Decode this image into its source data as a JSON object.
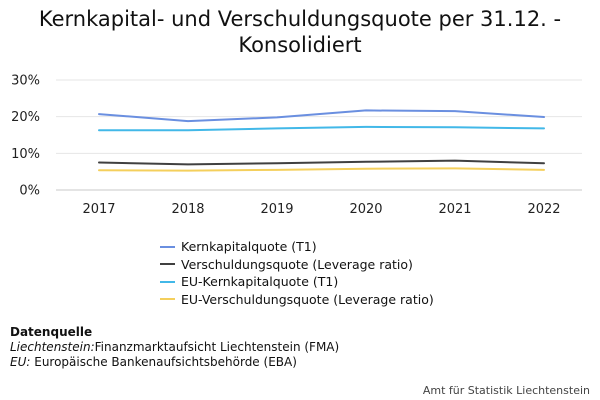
{
  "title_line1": "Kernkapital- und Verschuldungsquote per 31.12. -",
  "title_line2": "Konsolidiert",
  "chart_data": {
    "type": "line",
    "title": "Kernkapital- und Verschuldungsquote per 31.12. - Konsolidiert",
    "categories": [
      "2017",
      "2018",
      "2019",
      "2020",
      "2021",
      "2022"
    ],
    "ylim": [
      0,
      30
    ],
    "yticks": [
      "0%",
      "10%",
      "20%",
      "30%"
    ],
    "ytick_values": [
      0,
      10,
      20,
      30
    ],
    "grid": true,
    "legend_position": "bottom",
    "series": [
      {
        "name": "Kernkapitalquote (T1)",
        "color": "#6a8fe0",
        "values": [
          20.7,
          18.8,
          19.8,
          21.7,
          21.5,
          19.9
        ]
      },
      {
        "name": "Verschuldungsquote (Leverage ratio)",
        "color": "#404040",
        "values": [
          7.5,
          7.0,
          7.3,
          7.7,
          8.0,
          7.3
        ]
      },
      {
        "name": "EU-Kernkapitalquote (T1)",
        "color": "#42b8e8",
        "values": [
          16.3,
          16.3,
          16.8,
          17.2,
          17.1,
          16.8
        ]
      },
      {
        "name": "EU-Verschuldungsquote (Leverage ratio)",
        "color": "#f4cf5c",
        "values": [
          5.4,
          5.3,
          5.5,
          5.8,
          5.9,
          5.5
        ]
      }
    ]
  },
  "source": {
    "heading": "Datenquelle",
    "line1_label": "Liechtenstein:",
    "line1_text": "Finanzmarktaufsicht Liechtenstein (FMA)",
    "line2_label": "EU:",
    "line2_text": " Europäische Bankenaufsichtsbehörde (EBA)"
  },
  "credit": "Amt für Statistik Liechtenstein"
}
